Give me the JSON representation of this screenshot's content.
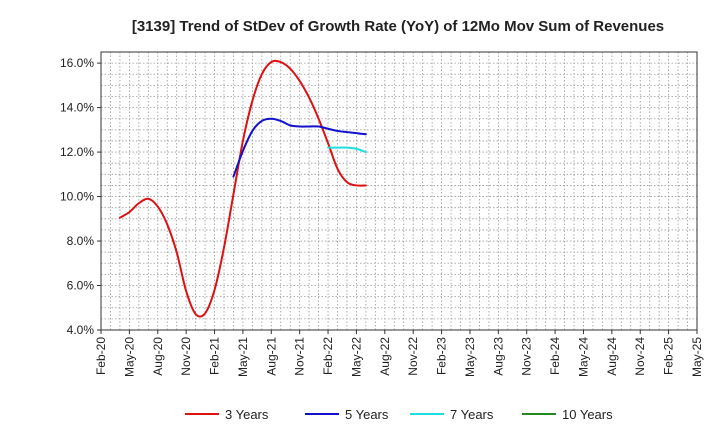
{
  "chart_data": {
    "type": "line",
    "title": "[3139]  Trend of StDev of Growth Rate (YoY) of 12Mo Mov Sum of Revenues",
    "xlabel": "",
    "ylabel": "",
    "ylim": [
      4.0,
      16.5
    ],
    "y_ticks": [
      4.0,
      6.0,
      8.0,
      10.0,
      12.0,
      14.0,
      16.0
    ],
    "y_tick_labels": [
      "4.0%",
      "6.0%",
      "8.0%",
      "10.0%",
      "12.0%",
      "14.0%",
      "16.0%"
    ],
    "x_ticks": [
      "Feb-20",
      "May-20",
      "Aug-20",
      "Nov-20",
      "Feb-21",
      "May-21",
      "Aug-21",
      "Nov-21",
      "Feb-22",
      "May-22",
      "Aug-22",
      "Nov-22",
      "Feb-23",
      "May-23",
      "Aug-23",
      "Nov-23",
      "Feb-24",
      "May-24",
      "Aug-24",
      "Nov-24",
      "Feb-25",
      "May-25"
    ],
    "grid": true,
    "legend_position": "bottom",
    "series": [
      {
        "name": "3 Years",
        "color": "#dd1111",
        "points": [
          [
            2,
            9.05
          ],
          [
            3,
            9.3
          ],
          [
            4,
            9.7
          ],
          [
            5,
            9.9
          ],
          [
            6,
            9.55
          ],
          [
            7,
            8.75
          ],
          [
            8,
            7.5
          ],
          [
            9,
            5.75
          ],
          [
            10,
            4.72
          ],
          [
            11,
            4.75
          ],
          [
            12,
            5.8
          ],
          [
            13,
            7.7
          ],
          [
            14,
            10.1
          ],
          [
            15,
            12.5
          ],
          [
            16,
            14.3
          ],
          [
            17,
            15.5
          ],
          [
            18,
            16.05
          ],
          [
            19,
            16.05
          ],
          [
            20,
            15.75
          ],
          [
            21,
            15.2
          ],
          [
            22,
            14.45
          ],
          [
            23,
            13.5
          ],
          [
            24,
            12.4
          ],
          [
            25,
            11.25
          ],
          [
            26,
            10.65
          ],
          [
            27,
            10.5
          ],
          [
            28,
            10.5
          ]
        ]
      },
      {
        "name": "5 Years",
        "color": "#1111cc",
        "points": [
          [
            14,
            10.9
          ],
          [
            15,
            12.05
          ],
          [
            16,
            12.95
          ],
          [
            17,
            13.4
          ],
          [
            18,
            13.5
          ],
          [
            19,
            13.4
          ],
          [
            20,
            13.2
          ],
          [
            21,
            13.15
          ],
          [
            22,
            13.15
          ],
          [
            23,
            13.15
          ],
          [
            24,
            13.05
          ],
          [
            25,
            12.95
          ],
          [
            26,
            12.9
          ],
          [
            27,
            12.85
          ],
          [
            28,
            12.8
          ]
        ]
      },
      {
        "name": "7 Years",
        "color": "#22dddd",
        "points": [
          [
            24,
            12.2
          ],
          [
            25,
            12.2
          ],
          [
            26,
            12.2
          ],
          [
            27,
            12.15
          ],
          [
            28,
            12.0
          ]
        ]
      },
      {
        "name": "10 Years",
        "color": "#228822",
        "points": []
      }
    ]
  }
}
